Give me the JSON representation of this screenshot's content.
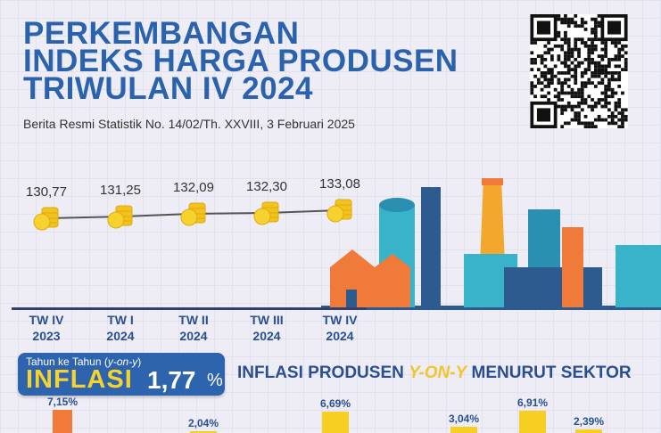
{
  "header": {
    "title_lines": [
      "PERKEMBANGAN",
      "INDEKS HARGA PRODUSEN",
      "TRIWULAN IV 2024"
    ],
    "subtitle": "Berita Resmi Statistik No. 14/02/Th. XXVIII, 3 Februari 2025"
  },
  "chart_data": [
    {
      "type": "line",
      "title": "Indeks Harga Produsen",
      "categories": [
        "TW IV 2023",
        "TW I 2024",
        "TW II 2024",
        "TW III 2024",
        "TW IV 2024"
      ],
      "category_lines": [
        [
          "TW IV",
          "2023"
        ],
        [
          "TW I",
          "2024"
        ],
        [
          "TW II",
          "2024"
        ],
        [
          "TW III",
          "2024"
        ],
        [
          "TW IV",
          "2024"
        ]
      ],
      "values": [
        130.77,
        131.25,
        132.09,
        132.3,
        133.08
      ],
      "value_labels": [
        "130,77",
        "131,25",
        "132,09",
        "132,30",
        "133,08"
      ]
    },
    {
      "type": "bar",
      "title": "INFLASI PRODUSEN Y-ON-Y MENURUT SEKTOR",
      "values": [
        7.15,
        2.04,
        6.69,
        3.04,
        6.91,
        2.39
      ],
      "value_labels": [
        "7,15%",
        "2,04%",
        "6,69%",
        "3,04%",
        "6,91%",
        "2,39%"
      ]
    }
  ],
  "inflation": {
    "subtitle_prefix": "Tahun ke Tahun (",
    "subtitle_em": "y-on-y",
    "subtitle_suffix": ")",
    "word": "INFLASI",
    "value": "1,77",
    "unit": "%"
  },
  "sector": {
    "title_a": "INFLASI PRODUSEN ",
    "title_em": "Y-ON-Y",
    "title_b": " MENURUT SEKTOR"
  },
  "colors": {
    "blue": "#2a62ad",
    "yellow": "#f6cf22",
    "orange": "#f07a3a"
  }
}
